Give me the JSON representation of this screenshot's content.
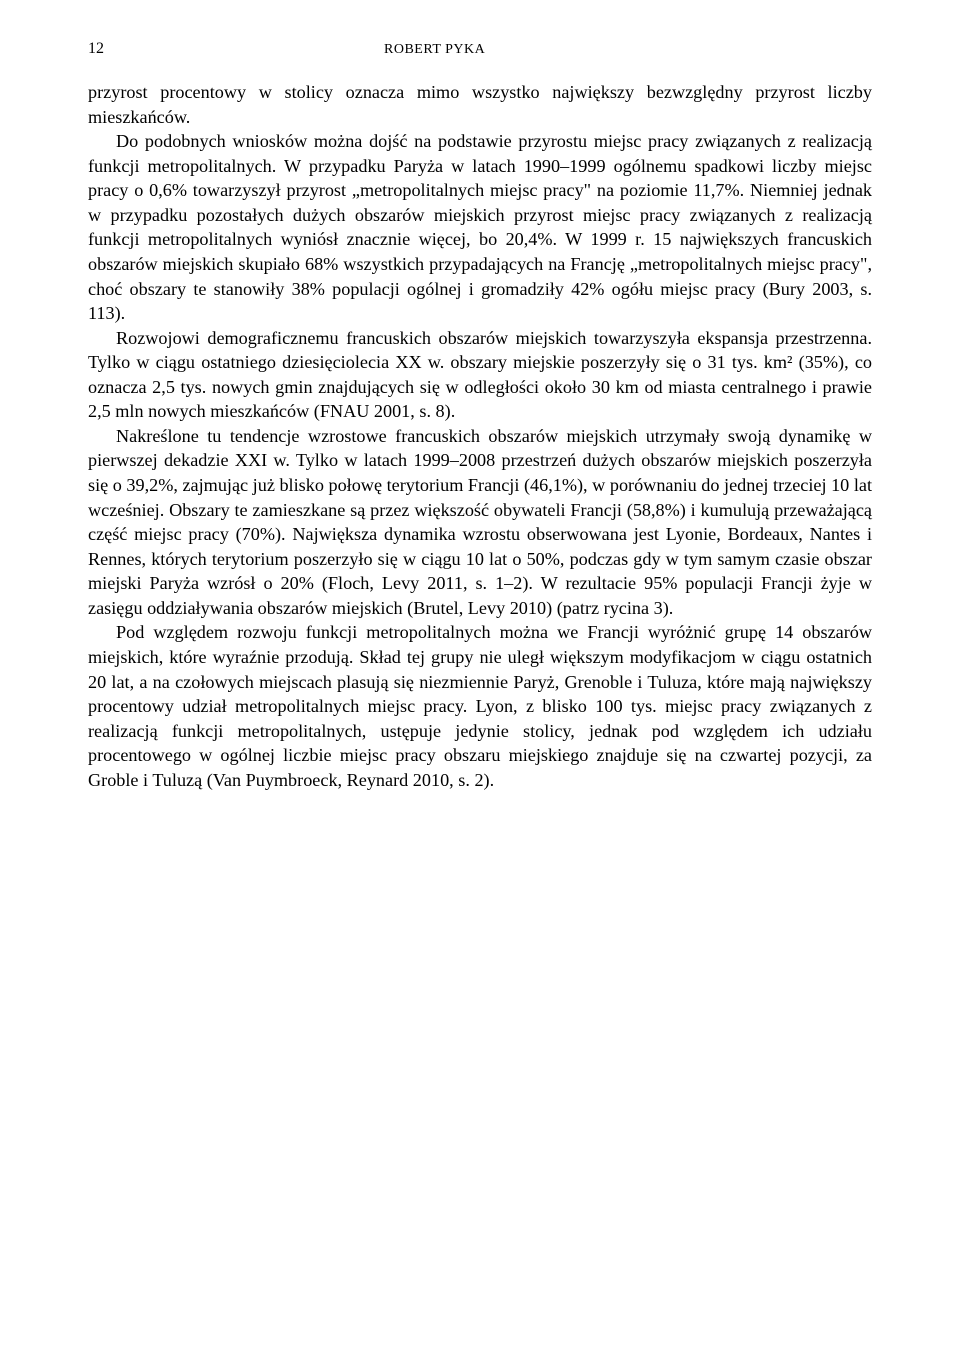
{
  "header": {
    "page_number": "12",
    "author": "ROBERT PYKA"
  },
  "paragraphs": [
    {
      "indent": false,
      "text": "przyrost procentowy w stolicy oznacza mimo wszystko największy bezwzględny przyrost liczby mieszkańców."
    },
    {
      "indent": true,
      "text": "Do podobnych wniosków można dojść na podstawie przyrostu miejsc pracy związanych z realizacją funkcji metropolitalnych. W przypadku Paryża w latach 1990–1999 ogólnemu spadkowi liczby miejsc pracy o 0,6% towarzyszył przyrost „metropolitalnych miejsc pracy\" na poziomie 11,7%. Niemniej jednak w przypadku pozostałych dużych obszarów miejskich przyrost miejsc pracy związanych z realizacją funkcji metropolitalnych wyniósł znacznie więcej, bo 20,4%. W 1999 r. 15 największych francuskich obszarów miejskich skupiało 68% wszystkich przypadających na Francję „metropolitalnych miejsc pracy\", choć obszary te stanowiły 38% populacji ogólnej i gromadziły 42% ogółu miejsc pracy (Bury 2003, s. 113)."
    },
    {
      "indent": true,
      "text": "Rozwojowi demograficznemu francuskich obszarów miejskich towarzyszyła ekspansja przestrzenna. Tylko w ciągu ostatniego dziesięciolecia XX w. obszary miejskie poszerzyły się o 31 tys. km² (35%), co oznacza 2,5 tys. nowych gmin znajdujących się w odległości około 30 km od miasta centralnego i prawie 2,5 mln nowych mieszkańców (FNAU 2001, s. 8)."
    },
    {
      "indent": true,
      "text": "Nakreślone tu tendencje wzrostowe francuskich obszarów miejskich utrzymały swoją dynamikę w pierwszej dekadzie XXI w. Tylko w latach 1999–2008 przestrzeń dużych obszarów miejskich poszerzyła się o 39,2%, zajmując już blisko połowę terytorium Francji (46,1%), w porównaniu do jednej trzeciej 10 lat wcześniej. Obszary te zamieszkane są przez większość obywateli Francji (58,8%) i kumulują przeważającą część miejsc pracy (70%). Największa dynamika wzrostu obserwowana jest Lyonie, Bordeaux, Nantes i Rennes, których terytorium poszerzyło się w ciągu 10 lat o 50%, podczas gdy w tym samym czasie obszar miejski Paryża wzrósł o 20% (Floch, Levy 2011, s. 1–2). W rezultacie 95% populacji Francji żyje w zasięgu oddziaływania obszarów miejskich (Brutel, Levy 2010) (patrz rycina 3)."
    },
    {
      "indent": true,
      "text": "Pod względem rozwoju funkcji metropolitalnych można we Francji wyróżnić grupę 14 obszarów miejskich, które wyraźnie przodują. Skład tej grupy nie uległ większym modyfikacjom w ciągu ostatnich 20 lat, a na czołowych miejscach plasują się niezmiennie Paryż, Grenoble i Tuluza, które mają największy procentowy udział metropolitalnych miejsc pracy. Lyon, z blisko 100 tys. miejsc pracy związanych z realizacją funkcji metropolitalnych, ustępuje jedynie stolicy, jednak pod względem ich udziału procentowego w ogólnej liczbie miejsc pracy obszaru miejskiego znajduje się na czwartej pozycji, za Groble i Tuluzą (Van Puymbroeck, Reynard 2010, s. 2)."
    }
  ],
  "colors": {
    "text": "#000000",
    "background": "#ffffff"
  },
  "typography": {
    "body_fontsize": 18.2,
    "body_lineheight": 1.35,
    "header_fontsize": 16,
    "author_fontsize": 14
  }
}
